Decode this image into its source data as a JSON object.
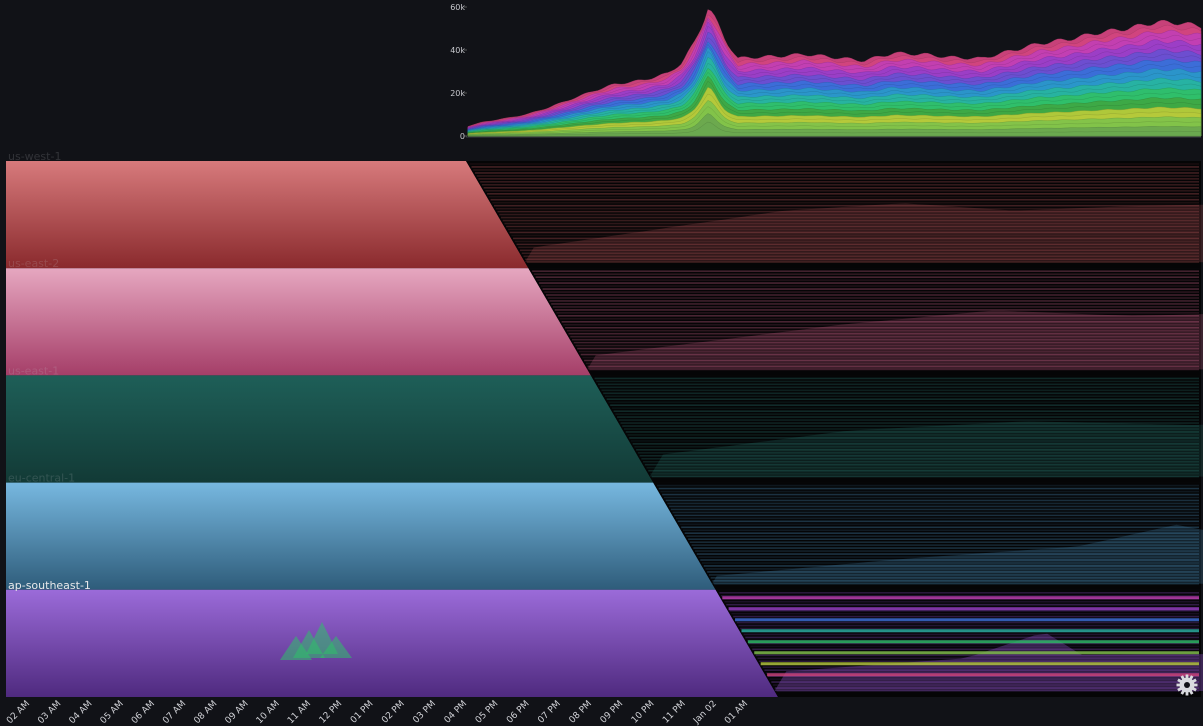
{
  "overview_chart": {
    "type": "area",
    "stacked": true,
    "ylim": [
      0,
      60000
    ],
    "y_ticks": [
      {
        "value": 0,
        "label": "0"
      },
      {
        "value": 20000,
        "label": "20k"
      },
      {
        "value": 40000,
        "label": "40k"
      },
      {
        "value": 60000,
        "label": "60k"
      }
    ],
    "x_range_hours": [
      0,
      25
    ],
    "total_profile": [
      [
        0,
        4500
      ],
      [
        0.5,
        6500
      ],
      [
        1.2,
        8000
      ],
      [
        2,
        10000
      ],
      [
        2.7,
        13000
      ],
      [
        3.5,
        17000
      ],
      [
        4.3,
        21000
      ],
      [
        5,
        24000
      ],
      [
        6,
        26000
      ],
      [
        6.8,
        29000
      ],
      [
        7.3,
        34000
      ],
      [
        7.7,
        43000
      ],
      [
        8.0,
        52000
      ],
      [
        8.2,
        60000
      ],
      [
        8.45,
        54000
      ],
      [
        8.8,
        44000
      ],
      [
        9.2,
        36000
      ],
      [
        9.6,
        36500
      ],
      [
        10.5,
        37000
      ],
      [
        11.5,
        38000
      ],
      [
        12.5,
        36500
      ],
      [
        13.5,
        35000
      ],
      [
        14.5,
        38500
      ],
      [
        15.5,
        38000
      ],
      [
        16.5,
        36500
      ],
      [
        17.5,
        36000
      ],
      [
        18.5,
        39500
      ],
      [
        19.5,
        43000
      ],
      [
        20.5,
        45000
      ],
      [
        21.5,
        48000
      ],
      [
        22.5,
        50000
      ],
      [
        23.5,
        53000
      ],
      [
        24.3,
        52500
      ],
      [
        25,
        51000
      ]
    ],
    "layers": 24,
    "palette": [
      "#6aa84f",
      "#82c34a",
      "#b5c93a",
      "#3ea845",
      "#2fbf6a",
      "#27b3a0",
      "#2a96c9",
      "#3a6fd8",
      "#6a4fd1",
      "#9a3ec7",
      "#c23fb3",
      "#d2457e"
    ]
  },
  "chart_data": {
    "type": "area",
    "x_tick_labels": [
      "02 AM",
      "03 AM",
      "04 AM",
      "05 AM",
      "06 AM",
      "07 AM",
      "08 AM",
      "09 AM",
      "10 AM",
      "11 AM",
      "12 PM",
      "01 PM",
      "02 PM",
      "03 PM",
      "04 PM",
      "05 PM",
      "06 PM",
      "07 PM",
      "08 PM",
      "09 PM",
      "10 PM",
      "11 PM",
      "Jan 02",
      "01 AM"
    ],
    "series": [
      {
        "name": "us-west-1",
        "color": "#c45b5e",
        "gradient": [
          "#d77a7c",
          "#8a2a2d"
        ],
        "profile": [
          [
            0,
            1000
          ],
          [
            8,
            3500
          ],
          [
            12,
            4000
          ],
          [
            16,
            3500
          ],
          [
            20,
            3800
          ],
          [
            25,
            4000
          ]
        ]
      },
      {
        "name": "us-east-2",
        "color": "#d8668f",
        "gradient": [
          "#e6a7c0",
          "#a53e68"
        ],
        "profile": [
          [
            0,
            1000
          ],
          [
            8,
            3200
          ],
          [
            13,
            4200
          ],
          [
            18,
            3800
          ],
          [
            25,
            4200
          ]
        ]
      },
      {
        "name": "us-east-1",
        "color": "#2a7a72",
        "gradient": [
          "#1e5f58",
          "#123a36"
        ],
        "profile": [
          [
            0,
            1200
          ],
          [
            6,
            2500
          ],
          [
            12,
            3000
          ],
          [
            18,
            2800
          ],
          [
            25,
            3200
          ]
        ]
      },
      {
        "name": "eu-central-1",
        "color": "#4e96c4",
        "gradient": [
          "#77b8e0",
          "#2e5c7a"
        ],
        "profile": [
          [
            0,
            800
          ],
          [
            6,
            2500
          ],
          [
            12,
            3800
          ],
          [
            15,
            6000
          ],
          [
            18,
            4500
          ],
          [
            25,
            3500
          ]
        ]
      },
      {
        "name": "ap-southeast-1",
        "color": "#8b4fc7",
        "gradient": [
          "#9b6bd9",
          "#4f2a7f"
        ],
        "profile": [
          [
            0,
            3000
          ],
          [
            6,
            5000
          ],
          [
            8.2,
            9000
          ],
          [
            10,
            5500
          ],
          [
            25,
            6000
          ]
        ]
      }
    ]
  }
}
